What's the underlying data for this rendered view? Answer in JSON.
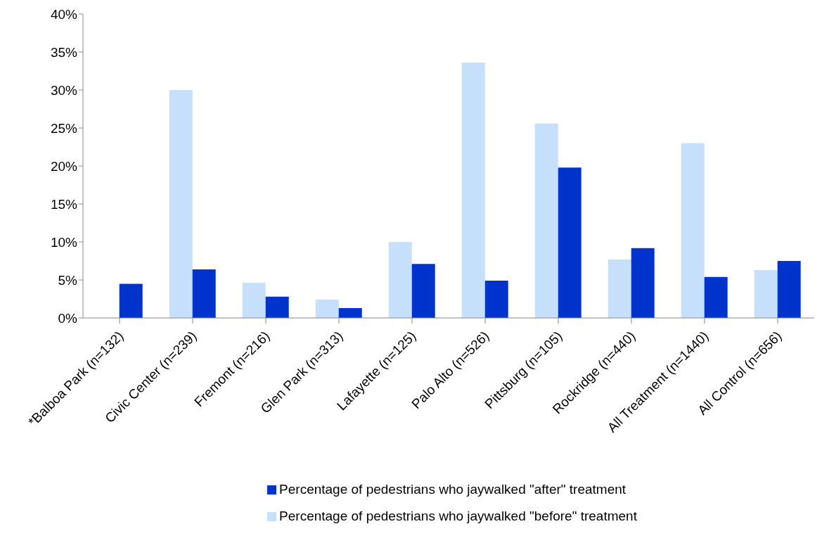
{
  "chart_data": {
    "type": "bar",
    "categories": [
      "*Balboa Park (n=132)",
      "Civic Center (n=239)",
      "Fremont (n=216)",
      "Glen Park (n=313)",
      "Lafayette (n=125)",
      "Palo Alto (n=526)",
      "Pittsburg (n=105)",
      "Rockridge (n=440)",
      "All Treatment (n=1440)",
      "All Control (n=656)"
    ],
    "series": [
      {
        "name": "Percentage of pedestrians who jaywalked \"before\" treatment",
        "color": "#c6e0fb",
        "values": [
          null,
          30.0,
          4.6,
          2.4,
          10.0,
          33.6,
          25.6,
          7.7,
          23.0,
          6.3
        ]
      },
      {
        "name": "Percentage of pedestrians who jaywalked \"after\" treatment",
        "color": "#0033cc",
        "values": [
          4.5,
          6.4,
          2.8,
          1.3,
          7.1,
          4.9,
          19.8,
          9.2,
          5.4,
          7.5
        ]
      }
    ],
    "ylim": [
      0,
      40
    ],
    "yticks": [
      {
        "value": 0,
        "label": "0%"
      },
      {
        "value": 5,
        "label": "5%"
      },
      {
        "value": 10,
        "label": "10%"
      },
      {
        "value": 15,
        "label": "15%"
      },
      {
        "value": 20,
        "label": "20%"
      },
      {
        "value": 25,
        "label": "25%"
      },
      {
        "value": 30,
        "label": "30%"
      },
      {
        "value": 35,
        "label": "35%"
      },
      {
        "value": 40,
        "label": "40%"
      }
    ],
    "grid": false,
    "legend": "bottom"
  }
}
